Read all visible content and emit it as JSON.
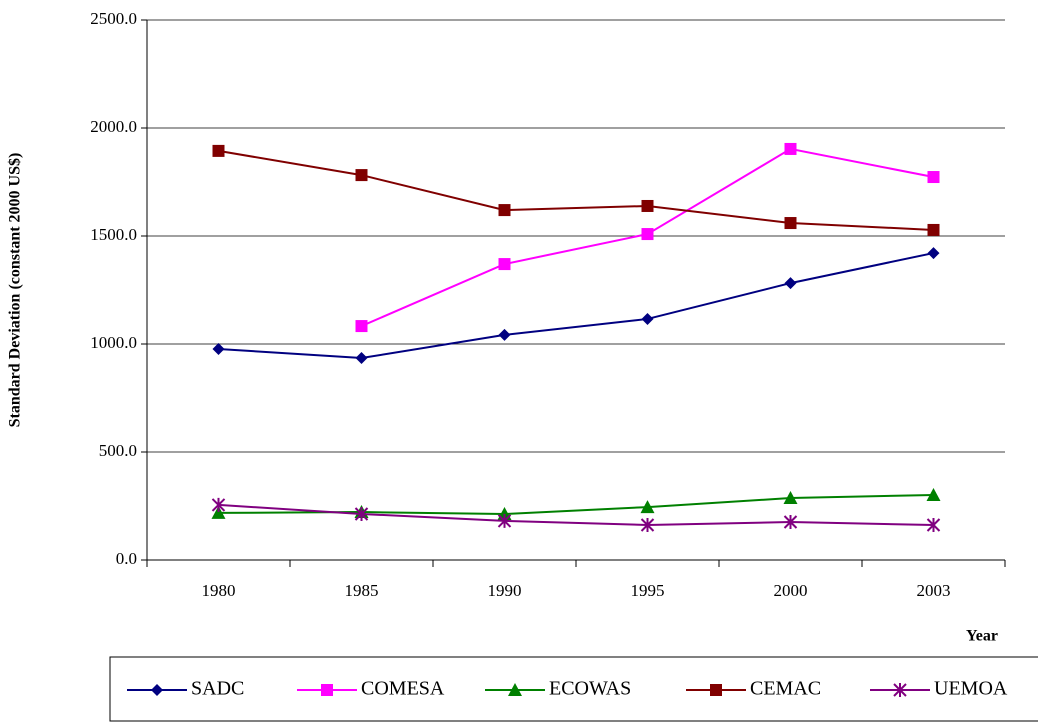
{
  "chart_data": {
    "type": "line",
    "y_label": "Standard Deviation (constant 2000 US$)",
    "x_label": "Year",
    "categories": [
      "1980",
      "1985",
      "1990",
      "1995",
      "2000",
      "2003"
    ],
    "series": [
      {
        "name": "SADC",
        "color": "#000080",
        "marker": "diamond",
        "values": [
          977,
          935,
          1042,
          1116,
          1282,
          1421
        ]
      },
      {
        "name": "COMESA",
        "color": "#ff00ff",
        "marker": "square",
        "values": [
          null,
          1083,
          1370,
          1509,
          1903,
          1773
        ]
      },
      {
        "name": "ECOWAS",
        "color": "#008000",
        "marker": "triangle",
        "values": [
          218,
          222,
          213,
          245,
          287,
          301
        ]
      },
      {
        "name": "CEMAC",
        "color": "#800000",
        "marker": "square",
        "values": [
          1894,
          1782,
          1620,
          1639,
          1560,
          1528
        ]
      },
      {
        "name": "UEMOA",
        "color": "#800080",
        "marker": "asterisk",
        "values": [
          255,
          213,
          181,
          162,
          176,
          162
        ]
      }
    ],
    "ylim": [
      0,
      2500
    ],
    "yticks": [
      {
        "value": 0,
        "label": "0.0"
      },
      {
        "value": 500,
        "label": "500.0"
      },
      {
        "value": 1000,
        "label": "1000.0"
      },
      {
        "value": 1500,
        "label": "1500.0"
      },
      {
        "value": 2000,
        "label": "2000.0"
      },
      {
        "value": 2500,
        "label": "2500.0"
      }
    ],
    "grid": true,
    "legend": "bottom"
  }
}
